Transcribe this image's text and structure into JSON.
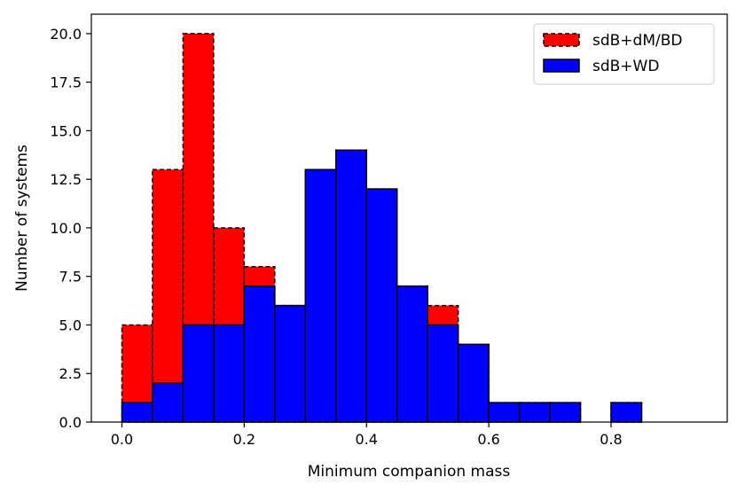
{
  "chart_data": {
    "type": "bar",
    "title": "",
    "xlabel": "Minimum companion mass",
    "ylabel": "Number of systems",
    "xlim": [
      -0.05,
      0.99
    ],
    "ylim": [
      0,
      21
    ],
    "bin_edges": [
      0.0,
      0.05,
      0.1,
      0.15,
      0.2,
      0.25,
      0.3,
      0.35,
      0.4,
      0.45,
      0.5,
      0.55,
      0.6,
      0.65,
      0.7,
      0.75,
      0.8,
      0.85,
      0.9,
      0.95
    ],
    "xticks": [
      0.0,
      0.2,
      0.4,
      0.6,
      0.8
    ],
    "xtick_labels": [
      "0.0",
      "0.2",
      "0.4",
      "0.6",
      "0.8"
    ],
    "yticks": [
      0,
      2.5,
      5,
      7.5,
      10,
      12.5,
      15,
      17.5,
      20
    ],
    "ytick_labels": [
      "0.0",
      "2.5",
      "5.0",
      "7.5",
      "10.0",
      "12.5",
      "15.0",
      "17.5",
      "20.0"
    ],
    "legend_position": "top-right",
    "grid": false,
    "series": [
      {
        "name": "sdB+dM/BD",
        "color": "#ff0000",
        "edge": "dashed",
        "values": [
          5,
          13,
          20,
          10,
          8,
          6,
          13,
          14,
          12,
          7,
          6,
          4,
          1,
          1,
          1,
          0,
          1,
          0,
          0
        ]
      },
      {
        "name": "sdB+WD",
        "color": "#0000ff",
        "edge": "solid",
        "values": [
          1,
          2,
          5,
          5,
          7,
          6,
          13,
          14,
          12,
          7,
          5,
          4,
          1,
          1,
          1,
          0,
          1,
          0,
          0
        ]
      }
    ]
  }
}
